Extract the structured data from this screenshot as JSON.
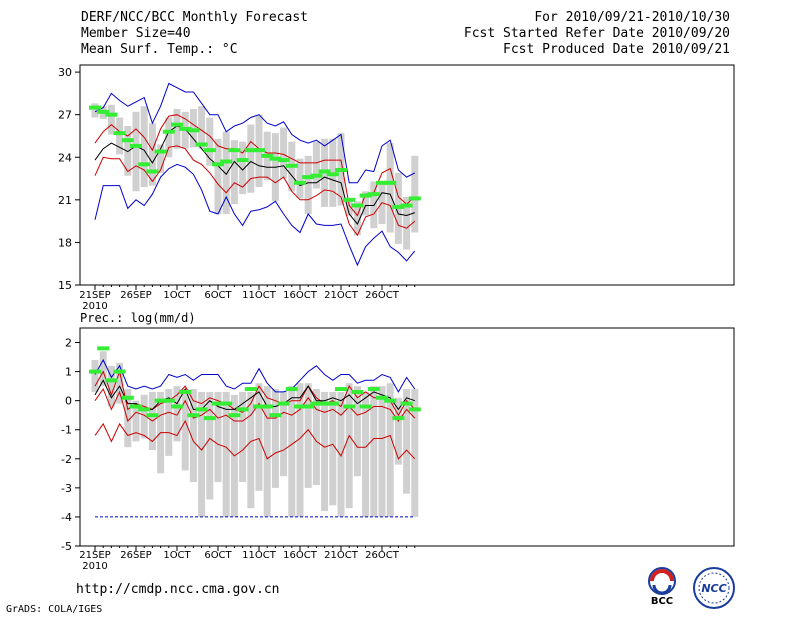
{
  "header": {
    "left": [
      "DERF/NCC/BCC Monthly Forecast",
      "Member Size=40",
      "Mean Surf. Temp.: °C"
    ],
    "right": [
      "For 2010/09/21-2010/10/30",
      "Fcst Started Refer Date 2010/09/20",
      "Fcst Produced Date 2010/09/21"
    ]
  },
  "footer": {
    "url": "http://cmdp.ncc.cma.gov.cn",
    "credit": "GrADS: COLA/IGES"
  },
  "logos": {
    "bcc": "BCC",
    "ncc": "NCC"
  },
  "colors": {
    "max_min": "#0000cc",
    "inner": "#cc0000",
    "mean": "#000000",
    "box": "#d0d0d0",
    "obs": "#33ee33"
  },
  "chart_data": [
    {
      "type": "line",
      "title": "Mean Surf. Temp.: °C",
      "x_tick_labels": [
        "21SEP",
        "26SEP",
        "1OCT",
        "6OCT",
        "11OCT",
        "16OCT",
        "21OCT",
        "26OCT"
      ],
      "x_tick_days": [
        1,
        6,
        11,
        16,
        21,
        26,
        31,
        36
      ],
      "x_year_label": "2010",
      "days": [
        1,
        2,
        3,
        4,
        5,
        6,
        7,
        8,
        9,
        10,
        11,
        12,
        13,
        14,
        15,
        16,
        17,
        18,
        19,
        20,
        21,
        22,
        23,
        24,
        25,
        26,
        27,
        28,
        29,
        30,
        31,
        32,
        33,
        34,
        35,
        36,
        37,
        38,
        39,
        40
      ],
      "ylim": [
        15,
        30.5
      ],
      "yticks": [
        15,
        18,
        21,
        24,
        27,
        30
      ],
      "series": [
        {
          "name": "max",
          "values": [
            27.2,
            27.5,
            28.5,
            28.0,
            27.6,
            27.9,
            28.2,
            26.4,
            27.6,
            29.2,
            28.9,
            28.6,
            28.6,
            27.8,
            27.0,
            27.0,
            25.8,
            26.2,
            26.4,
            26.8,
            27.0,
            26.4,
            26.2,
            26.5,
            25.6,
            25.2,
            25.0,
            25.2,
            24.8,
            25.2,
            25.6,
            22.2,
            22.2,
            23.1,
            23.0,
            24.8,
            25.2,
            23.1,
            22.6,
            22.9
          ]
        },
        {
          "name": "upper",
          "values": [
            25.0,
            25.8,
            26.3,
            25.8,
            25.5,
            26.0,
            25.4,
            24.5,
            26.0,
            26.9,
            27.0,
            26.7,
            26.3,
            25.9,
            25.5,
            24.8,
            24.6,
            24.6,
            24.3,
            25.1,
            24.6,
            24.3,
            24.3,
            24.2,
            23.9,
            23.6,
            23.6,
            23.6,
            23.8,
            23.8,
            23.8,
            20.6,
            19.9,
            21.4,
            21.5,
            22.9,
            23.2,
            21.2,
            20.7,
            21.2
          ]
        },
        {
          "name": "mean",
          "values": [
            23.8,
            24.6,
            25.0,
            24.7,
            24.4,
            24.8,
            24.5,
            23.6,
            24.6,
            25.8,
            26.2,
            26.0,
            25.3,
            24.6,
            23.9,
            23.4,
            22.8,
            23.7,
            23.1,
            23.7,
            23.4,
            23.3,
            23.3,
            23.4,
            22.7,
            22.0,
            22.2,
            22.2,
            22.6,
            22.4,
            22.2,
            20.0,
            19.3,
            20.6,
            20.6,
            21.5,
            21.4,
            20.0,
            19.9,
            20.1
          ]
        },
        {
          "name": "lower",
          "values": [
            22.7,
            24.0,
            23.9,
            23.9,
            23.0,
            23.4,
            23.1,
            22.3,
            23.1,
            24.7,
            24.8,
            24.6,
            23.8,
            23.5,
            22.9,
            22.1,
            21.5,
            22.2,
            21.9,
            22.5,
            22.6,
            22.6,
            22.2,
            22.6,
            21.6,
            21.0,
            21.0,
            21.3,
            21.7,
            21.6,
            21.2,
            19.3,
            18.5,
            19.8,
            20.0,
            20.8,
            20.6,
            19.2,
            19.0,
            19.5
          ]
        },
        {
          "name": "min",
          "values": [
            19.6,
            22.0,
            22.0,
            22.0,
            20.4,
            21.0,
            20.6,
            21.4,
            22.6,
            23.2,
            23.5,
            23.3,
            22.8,
            21.7,
            20.2,
            20.0,
            21.2,
            20.0,
            19.2,
            20.2,
            20.3,
            20.5,
            20.9,
            20.0,
            19.2,
            18.7,
            20.0,
            19.3,
            19.2,
            19.2,
            19.3,
            17.8,
            16.4,
            17.7,
            18.3,
            18.8,
            17.7,
            17.3,
            16.7,
            17.4
          ]
        }
      ],
      "boxes": [
        [
          26.8,
          27.8
        ],
        [
          26.7,
          27.6
        ],
        [
          25.6,
          27.7
        ],
        [
          24.2,
          26.8
        ],
        [
          22.7,
          26.2
        ],
        [
          21.6,
          27.2
        ],
        [
          21.9,
          27.6
        ],
        [
          22.0,
          26.4
        ],
        [
          22.9,
          24.9
        ],
        [
          24.0,
          26.8
        ],
        [
          24.6,
          27.4
        ],
        [
          24.6,
          27.2
        ],
        [
          24.7,
          27.4
        ],
        [
          24.6,
          27.6
        ],
        [
          23.4,
          26.8
        ],
        [
          20.0,
          25.3
        ],
        [
          20.0,
          25.8
        ],
        [
          20.7,
          25.2
        ],
        [
          21.4,
          25.1
        ],
        [
          21.5,
          26.3
        ],
        [
          21.9,
          27.0
        ],
        [
          22.4,
          25.8
        ],
        [
          20.9,
          25.7
        ],
        [
          22.5,
          26.1
        ],
        [
          21.6,
          25.1
        ],
        [
          21.1,
          23.9
        ],
        [
          20.0,
          24.1
        ],
        [
          21.8,
          25.1
        ],
        [
          20.5,
          25.3
        ],
        [
          20.5,
          25.3
        ],
        [
          20.6,
          25.7
        ],
        [
          19.9,
          20.9
        ],
        [
          18.5,
          20.9
        ],
        [
          19.9,
          21.6
        ],
        [
          19.0,
          22.3
        ],
        [
          19.3,
          22.1
        ],
        [
          18.7,
          25.0
        ],
        [
          17.9,
          22.9
        ],
        [
          17.5,
          21.2
        ],
        [
          18.7,
          24.1
        ]
      ],
      "observed": [
        27.5,
        27.2,
        27.0,
        25.7,
        25.2,
        24.8,
        23.5,
        23.0,
        24.4,
        25.8,
        26.3,
        26.0,
        25.9,
        24.9,
        24.5,
        23.5,
        23.7,
        24.5,
        23.8,
        24.5,
        24.5,
        24.1,
        23.9,
        23.8,
        23.4,
        22.2,
        22.6,
        22.7,
        23.0,
        22.8,
        23.1,
        21.0,
        20.6,
        21.3,
        21.4,
        22.2,
        22.2,
        20.5,
        20.6,
        21.1
      ]
    },
    {
      "type": "line",
      "title": "Prec.: log(mm/d)",
      "x_tick_labels": [
        "21SEP",
        "26SEP",
        "1OCT",
        "6OCT",
        "11OCT",
        "16OCT",
        "21OCT",
        "26OCT"
      ],
      "x_tick_days": [
        1,
        6,
        11,
        16,
        21,
        26,
        31,
        36
      ],
      "x_year_label": "2010",
      "days": [
        1,
        2,
        3,
        4,
        5,
        6,
        7,
        8,
        9,
        10,
        11,
        12,
        13,
        14,
        15,
        16,
        17,
        18,
        19,
        20,
        21,
        22,
        23,
        24,
        25,
        26,
        27,
        28,
        29,
        30,
        31,
        32,
        33,
        34,
        35,
        36,
        37,
        38,
        39,
        40
      ],
      "ylim": [
        -5,
        2.5
      ],
      "yticks": [
        -5,
        -4,
        -3,
        -2,
        -1,
        0,
        1,
        2
      ],
      "series": [
        {
          "name": "max",
          "values": [
            0.9,
            1.4,
            0.8,
            1.2,
            0.5,
            0.4,
            0.5,
            0.4,
            0.5,
            0.9,
            0.8,
            0.9,
            0.7,
            0.9,
            0.9,
            0.9,
            0.5,
            0.4,
            0.6,
            0.6,
            1.1,
            0.6,
            0.3,
            0.3,
            0.4,
            0.7,
            1.0,
            1.2,
            0.9,
            0.7,
            0.9,
            0.9,
            0.6,
            0.7,
            0.7,
            0.9,
            0.8,
            0.3,
            0.8,
            0.4
          ]
        },
        {
          "name": "upper",
          "values": [
            0.5,
            1.0,
            0.2,
            1.0,
            -0.3,
            -0.1,
            -0.2,
            -0.3,
            -0.1,
            0.0,
            0.2,
            0.5,
            0.0,
            -0.1,
            0.1,
            0.0,
            -0.1,
            -0.3,
            -0.4,
            -0.1,
            0.5,
            0.1,
            0.0,
            -0.1,
            0.0,
            0.0,
            0.5,
            0.1,
            -0.1,
            0.0,
            -0.2,
            0.5,
            0.1,
            0.3,
            0.1,
            0.1,
            0.0,
            -0.5,
            0.0,
            -0.3
          ]
        },
        {
          "name": "mean",
          "values": [
            0.2,
            0.7,
            0.1,
            0.5,
            -0.1,
            -0.1,
            -0.3,
            -0.3,
            0.0,
            0.1,
            -0.1,
            0.4,
            -0.3,
            -0.3,
            0.0,
            -0.2,
            -0.3,
            -0.3,
            -0.1,
            0.1,
            0.3,
            -0.2,
            -0.2,
            -0.1,
            0.1,
            0.1,
            0.5,
            0.0,
            0.0,
            0.1,
            0.0,
            0.2,
            -0.1,
            0.1,
            0.3,
            0.2,
            0.1,
            -0.3,
            0.1,
            0.0
          ]
        },
        {
          "name": "lower",
          "values": [
            0.0,
            0.4,
            -0.3,
            0.3,
            -0.7,
            -0.4,
            -0.5,
            -0.7,
            -0.5,
            -0.4,
            -0.5,
            0.0,
            -0.6,
            -0.5,
            -0.3,
            -0.6,
            -0.5,
            -0.7,
            -0.7,
            -0.5,
            -0.1,
            -0.6,
            -0.6,
            -0.4,
            -0.5,
            -0.3,
            0.1,
            -0.3,
            -0.4,
            -0.3,
            -0.5,
            -0.2,
            -0.5,
            -0.4,
            -0.2,
            -0.2,
            -0.3,
            -0.7,
            -0.3,
            -0.6
          ]
        },
        {
          "name": "low",
          "values": [
            -1.2,
            -0.8,
            -1.4,
            -0.8,
            -1.2,
            -1.1,
            -1.2,
            -1.4,
            -1.1,
            -1.1,
            -1.2,
            -0.7,
            -1.4,
            -1.7,
            -1.3,
            -1.5,
            -1.6,
            -1.9,
            -1.7,
            -1.4,
            -1.3,
            -2.0,
            -1.8,
            -1.7,
            -1.5,
            -1.3,
            -1.0,
            -1.4,
            -1.6,
            -1.5,
            -1.9,
            -1.2,
            -1.6,
            -1.6,
            -1.3,
            -1.3,
            -1.2,
            -2.0,
            -1.7,
            -2.0
          ]
        },
        {
          "name": "min",
          "values": [
            -4,
            -4,
            -4,
            -4,
            -4,
            -4,
            -4,
            -4,
            -4,
            -4,
            -4,
            -4,
            -4,
            -4,
            -4,
            -4,
            -4,
            -4,
            -4,
            -4,
            -4,
            -4,
            -4,
            -4,
            -4,
            -4,
            -4,
            -4,
            -4,
            -4,
            -4,
            -4,
            -4,
            -4,
            -4,
            -4,
            -4,
            -4,
            -4,
            -4
          ]
        }
      ],
      "boxes": [
        [
          0.3,
          1.4
        ],
        [
          0.5,
          1.7
        ],
        [
          -0.2,
          1.2
        ],
        [
          -0.1,
          1.3
        ],
        [
          -1.6,
          0.4
        ],
        [
          -1.4,
          0.0
        ],
        [
          -1.3,
          0.2
        ],
        [
          -1.7,
          0.3
        ],
        [
          -2.5,
          0.3
        ],
        [
          -1.9,
          0.4
        ],
        [
          -1.4,
          0.5
        ],
        [
          -2.4,
          0.4
        ],
        [
          -2.8,
          0.4
        ],
        [
          -4.0,
          0.3
        ],
        [
          -3.4,
          0.3
        ],
        [
          -2.8,
          0.3
        ],
        [
          -4.0,
          0.3
        ],
        [
          -4.0,
          0.2
        ],
        [
          -2.8,
          0.3
        ],
        [
          -3.7,
          0.3
        ],
        [
          -3.1,
          0.6
        ],
        [
          -4.0,
          0.5
        ],
        [
          -3.0,
          0.4
        ],
        [
          -2.6,
          0.3
        ],
        [
          -4.0,
          0.5
        ],
        [
          -4.0,
          0.6
        ],
        [
          -3.0,
          0.6
        ],
        [
          -2.9,
          0.4
        ],
        [
          -3.8,
          0.3
        ],
        [
          -3.6,
          0.3
        ],
        [
          -4.0,
          0.3
        ],
        [
          -3.7,
          0.6
        ],
        [
          -2.6,
          0.5
        ],
        [
          -4.0,
          0.3
        ],
        [
          -4.0,
          0.5
        ],
        [
          -4.0,
          0.5
        ],
        [
          -4.0,
          0.6
        ],
        [
          -2.2,
          0.1
        ],
        [
          -3.2,
          0.4
        ],
        [
          -4.0,
          0.4
        ]
      ],
      "observed": [
        1.0,
        1.8,
        0.7,
        1.0,
        0.1,
        -0.2,
        -0.3,
        -0.5,
        0.0,
        0.0,
        -0.2,
        0.3,
        -0.5,
        -0.3,
        -0.6,
        -0.1,
        -0.1,
        -0.5,
        -0.3,
        0.4,
        -0.2,
        -0.2,
        -0.5,
        -0.1,
        0.4,
        -0.2,
        -0.2,
        -0.1,
        -0.1,
        -0.1,
        0.4,
        -0.2,
        0.3,
        -0.2,
        0.4,
        0.1,
        0.0,
        -0.6,
        -0.1,
        -0.3
      ]
    }
  ]
}
